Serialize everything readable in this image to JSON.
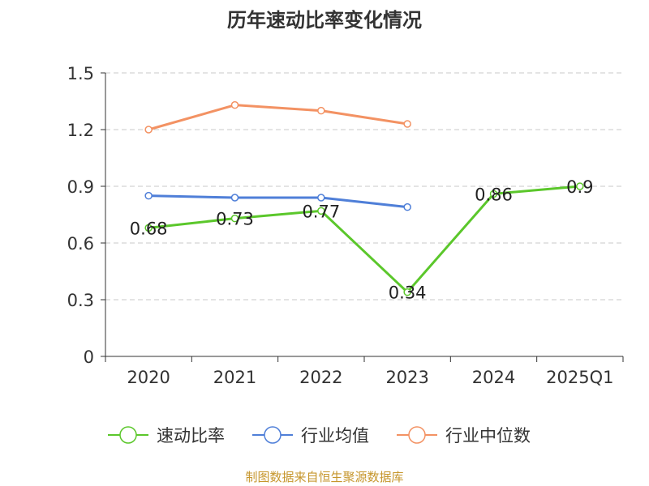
{
  "chart_data": {
    "type": "line",
    "title": "历年速动比率变化情况",
    "categories": [
      "2020",
      "2021",
      "2022",
      "2023",
      "2024",
      "2025Q1"
    ],
    "ylim": [
      0,
      1.5
    ],
    "yticks": [
      "0",
      "0.3",
      "0.6",
      "0.9",
      "1.2",
      "1.5"
    ],
    "grid": true,
    "legend_position": "bottom",
    "series": [
      {
        "name": "速动比率",
        "color": "#5bc72b",
        "values": [
          0.68,
          0.73,
          0.77,
          0.34,
          0.86,
          0.9
        ],
        "labels": [
          "0.68",
          "0.73",
          "0.77",
          "0.34",
          "0.86",
          "0.9"
        ]
      },
      {
        "name": "行业均值",
        "color": "#4f7fd8",
        "values": [
          0.85,
          0.84,
          0.84,
          0.79,
          null,
          null
        ]
      },
      {
        "name": "行业中位数",
        "color": "#f39263",
        "values": [
          1.2,
          1.33,
          1.3,
          1.23,
          null,
          null
        ]
      }
    ]
  },
  "source": "制图数据来自恒生聚源数据库"
}
